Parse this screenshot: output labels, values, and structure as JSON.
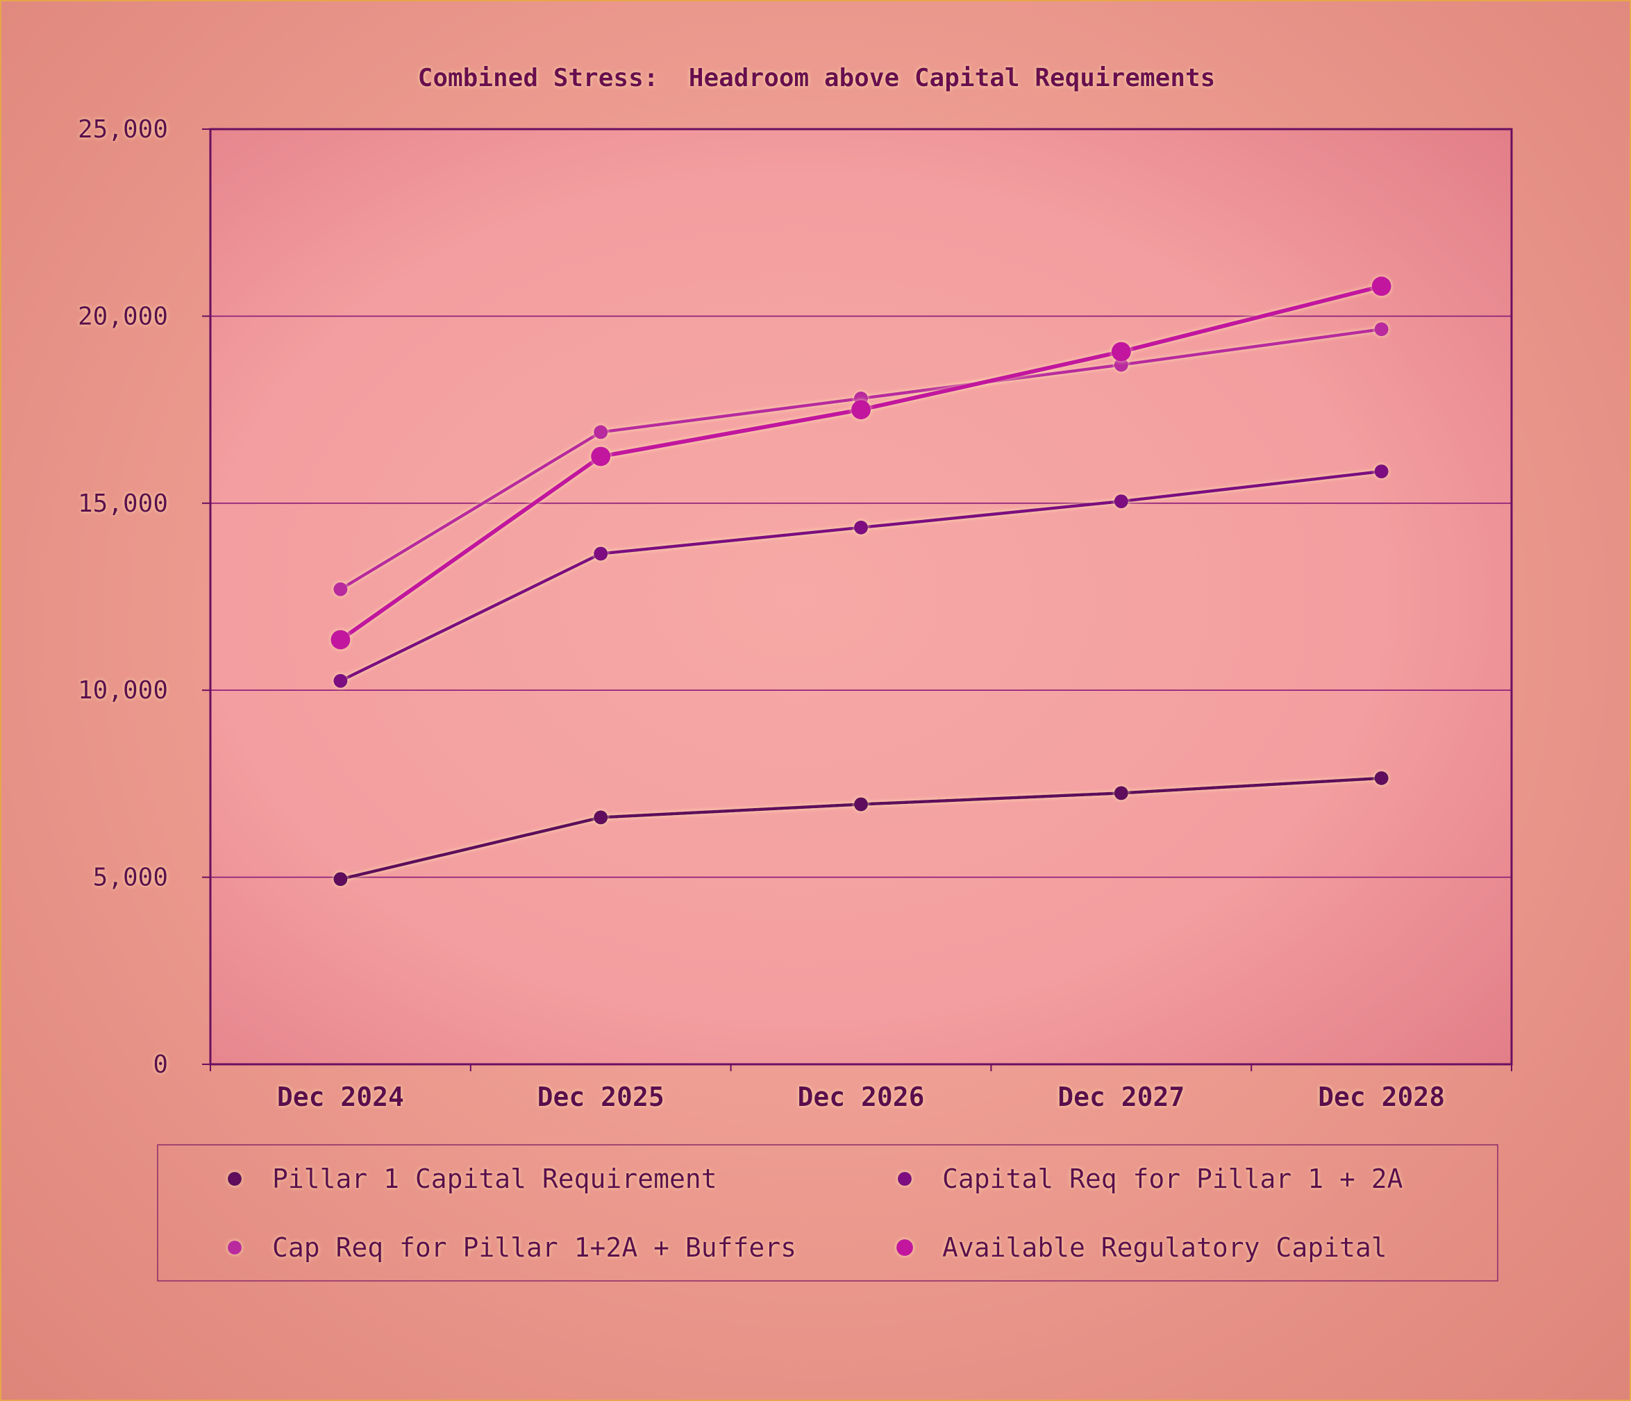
{
  "chart_data": {
    "type": "line",
    "title": "Combined Stress:  Headroom above Capital Requirements",
    "xlabel": "",
    "ylabel": "",
    "categories": [
      "Dec 2024",
      "Dec 2025",
      "Dec 2026",
      "Dec 2027",
      "Dec 2028"
    ],
    "ylim": [
      0,
      25000
    ],
    "yticks": [
      0,
      5000,
      10000,
      15000,
      20000,
      25000
    ],
    "ytick_labels": [
      "0",
      "5,000",
      "10,000",
      "15,000",
      "20,000",
      "25,000"
    ],
    "grid": true,
    "legend_position": "bottom",
    "series": [
      {
        "name": "Pillar 1 Capital Requirement",
        "values": [
          4950,
          6600,
          6950,
          7250,
          7650
        ],
        "color": "#5e0f5c",
        "style": "normal"
      },
      {
        "name": "Capital Req for Pillar 1 + 2A",
        "values": [
          10250,
          13650,
          14350,
          15050,
          15850
        ],
        "color": "#7d0c80",
        "style": "normal"
      },
      {
        "name": "Cap Req for Pillar 1+2A + Buffers",
        "values": [
          12700,
          16900,
          17800,
          18700,
          19650
        ],
        "color": "#b82a9e",
        "style": "normal"
      },
      {
        "name": "Available Regulatory Capital",
        "values": [
          11350,
          16250,
          17500,
          19050,
          20800
        ],
        "color": "#c2129e",
        "style": "bold"
      }
    ],
    "colors": {
      "background": "#ee9d92",
      "plot_background": "#f4a2a2",
      "axis": "#6a0f60",
      "gridline": "#8a1a78",
      "text": "#5c0d4e",
      "frame_border": "#e8a64a"
    }
  }
}
